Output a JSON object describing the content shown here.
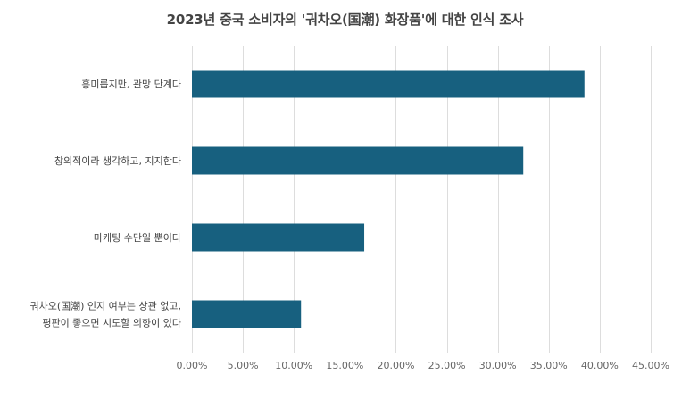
{
  "chart_data": {
    "type": "bar",
    "orientation": "horizontal",
    "title": "2023년 중국 소비자의 '궈차오(国潮) 화장품'에 대한 인식 조사",
    "xlabel": "",
    "ylabel": "",
    "categories": [
      [
        "흥미롭지만, 관망 단계다"
      ],
      [
        "창의적이라 생각하고, 지지한다"
      ],
      [
        "마케팅 수단일 뿐이다"
      ],
      [
        "궈차오(国潮) 인지 여부는 상관 없고,",
        "평판이 좋으면 시도할 의향이 있다"
      ]
    ],
    "values": [
      0.385,
      0.325,
      0.169,
      0.107
    ],
    "xlim": [
      0,
      0.45
    ],
    "x_ticks": [
      0,
      0.05,
      0.1,
      0.15,
      0.2,
      0.25,
      0.3,
      0.35,
      0.4,
      0.45
    ],
    "x_tick_labels": [
      "0.00%",
      "5.00%",
      "10.00%",
      "15.00%",
      "20.00%",
      "25.00%",
      "30.00%",
      "35.00%",
      "40.00%",
      "45.00%"
    ],
    "grid": true,
    "legend": "none",
    "colors": {
      "bar": "#17607f",
      "grid": "#dddddd",
      "title": "#444444"
    }
  }
}
